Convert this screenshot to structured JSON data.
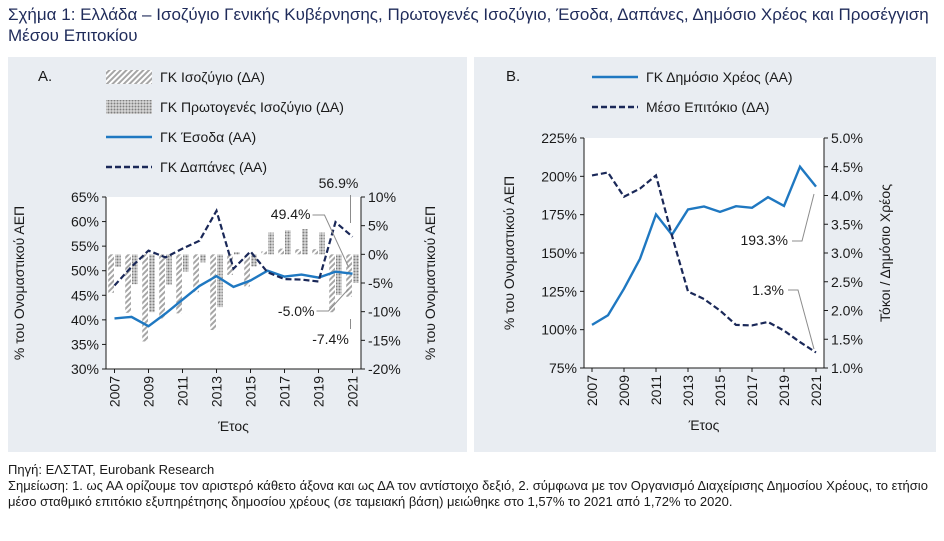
{
  "title": "Σχήμα 1: Ελλάδα – Ισοζύγιο Γενικής Κυβέρνησης, Πρωτογενές Ισοζύγιο, Έσοδα, Δαπάνες, Δημόσιο Χρέος και Προσέγγιση Μέσου Επιτοκίου",
  "footer": {
    "source": "Πηγή: ΕΛΣΤΑΤ, Eurobank Research",
    "note": "Σημείωση: 1. ως ΑΑ ορίζουμε τον αριστερό κάθετο άξονα και ως ΔΑ τον αντίστοιχο δεξιό, 2. σύμφωνα με τον Οργανισμό Διαχείρισης Δημοσίου Χρέους, το ετήσιο μέσο σταθμικό επιτόκιο εξυπηρέτησης δημοσίου χρέους (σε ταμειακή βάση) μειώθηκε στο 1,57% το 2021 από 1,72% το 2020."
  },
  "colors": {
    "solid": "#1f78c1",
    "dashed": "#1a2858",
    "bar": "#a6a6a6",
    "panel_bg": "#e9edf2"
  },
  "chart_data": [
    {
      "panel_label": "A.",
      "type": "bar",
      "x": [
        2007,
        2008,
        2009,
        2010,
        2011,
        2012,
        2013,
        2014,
        2015,
        2016,
        2017,
        2018,
        2019,
        2020,
        2021
      ],
      "xticks": [
        "2007",
        "2009",
        "2011",
        "2013",
        "2015",
        "2017",
        "2019",
        "2021"
      ],
      "xlabel": "Έτος",
      "ylabel_left": "% του Ονομαστικού ΑΕΠ",
      "ylabel_right": "% του Ονομαστικού ΑΕΠ",
      "ylim_left": [
        30,
        65
      ],
      "yticks_left": [
        "30%",
        "35%",
        "40%",
        "45%",
        "50%",
        "55%",
        "60%",
        "65%"
      ],
      "ylim_right": [
        -20,
        10
      ],
      "yticks_right": [
        "-20%",
        "-15%",
        "-10%",
        "-5%",
        "0%",
        "5%",
        "10%"
      ],
      "series": [
        {
          "name": "ΓΚ Ισοζύγιο (ΔΑ)",
          "kind": "bar",
          "axis": "right",
          "values": [
            -6.7,
            -10.2,
            -15.2,
            -11.2,
            -10.3,
            -6.6,
            -13.2,
            -3.6,
            -5.6,
            0.5,
            1.0,
            0.9,
            0.9,
            -10.1,
            -7.4
          ]
        },
        {
          "name": "ΓΚ Πρωτογενές Ισοζύγιο (ΔΑ)",
          "kind": "bar",
          "axis": "right",
          "values": [
            -2.2,
            -5.2,
            -10.1,
            -5.3,
            -3.0,
            -1.4,
            -9.2,
            0.4,
            -2.1,
            3.8,
            4.2,
            4.4,
            3.8,
            -7.1,
            -5.0
          ]
        },
        {
          "name": "ΓΚ Έσοδα (ΑΑ)",
          "kind": "line",
          "axis": "left",
          "values": [
            40.3,
            40.6,
            38.7,
            41.3,
            44.1,
            46.9,
            48.9,
            46.7,
            48.0,
            50.0,
            48.8,
            49.2,
            48.6,
            49.8,
            49.4
          ]
        },
        {
          "name": "ΓΚ Δαπάνες (ΑΑ)",
          "kind": "dashed-line",
          "axis": "left",
          "values": [
            47.0,
            50.8,
            54.1,
            52.7,
            54.5,
            56.1,
            62.2,
            50.4,
            53.9,
            49.7,
            48.3,
            48.2,
            47.8,
            59.9,
            56.9
          ]
        }
      ],
      "annotations": [
        "49.4%",
        "56.9%",
        "-5.0%",
        "-7.4%"
      ]
    },
    {
      "panel_label": "B.",
      "type": "line",
      "x": [
        2007,
        2008,
        2009,
        2010,
        2011,
        2012,
        2013,
        2014,
        2015,
        2016,
        2017,
        2018,
        2019,
        2020,
        2021
      ],
      "xticks": [
        "2007",
        "2009",
        "2011",
        "2013",
        "2015",
        "2017",
        "2019",
        "2021"
      ],
      "xlabel": "Έτος",
      "ylabel_left": "% του Ονομαστικού ΑΕΠ",
      "ylabel_right": "Τόκοι / Δημόσιο Χρέος",
      "ylim_left": [
        75,
        225
      ],
      "yticks_left": [
        "75%",
        "100%",
        "125%",
        "150%",
        "175%",
        "200%",
        "225%"
      ],
      "ylim_right": [
        1.0,
        5.0
      ],
      "yticks_right": [
        "1.0%",
        "1.5%",
        "2.0%",
        "2.5%",
        "3.0%",
        "3.5%",
        "4.0%",
        "4.5%",
        "5.0%"
      ],
      "series": [
        {
          "name": "ΓΚ Δημόσιο Χρέος (ΑΑ)",
          "kind": "line",
          "axis": "left",
          "values": [
            103.1,
            109.4,
            126.7,
            146.2,
            175.2,
            161.9,
            178.4,
            180.3,
            176.8,
            180.5,
            179.5,
            186.4,
            180.7,
            206.3,
            193.3
          ]
        },
        {
          "name": "Μέσο Επιτόκιο (ΔΑ)",
          "kind": "dashed-line",
          "axis": "right",
          "values": [
            4.35,
            4.4,
            3.98,
            4.12,
            4.35,
            3.3,
            2.33,
            2.2,
            2.0,
            1.75,
            1.74,
            1.8,
            1.65,
            1.45,
            1.27
          ]
        }
      ],
      "annotations": [
        "193.3%",
        "1.3%"
      ]
    }
  ]
}
